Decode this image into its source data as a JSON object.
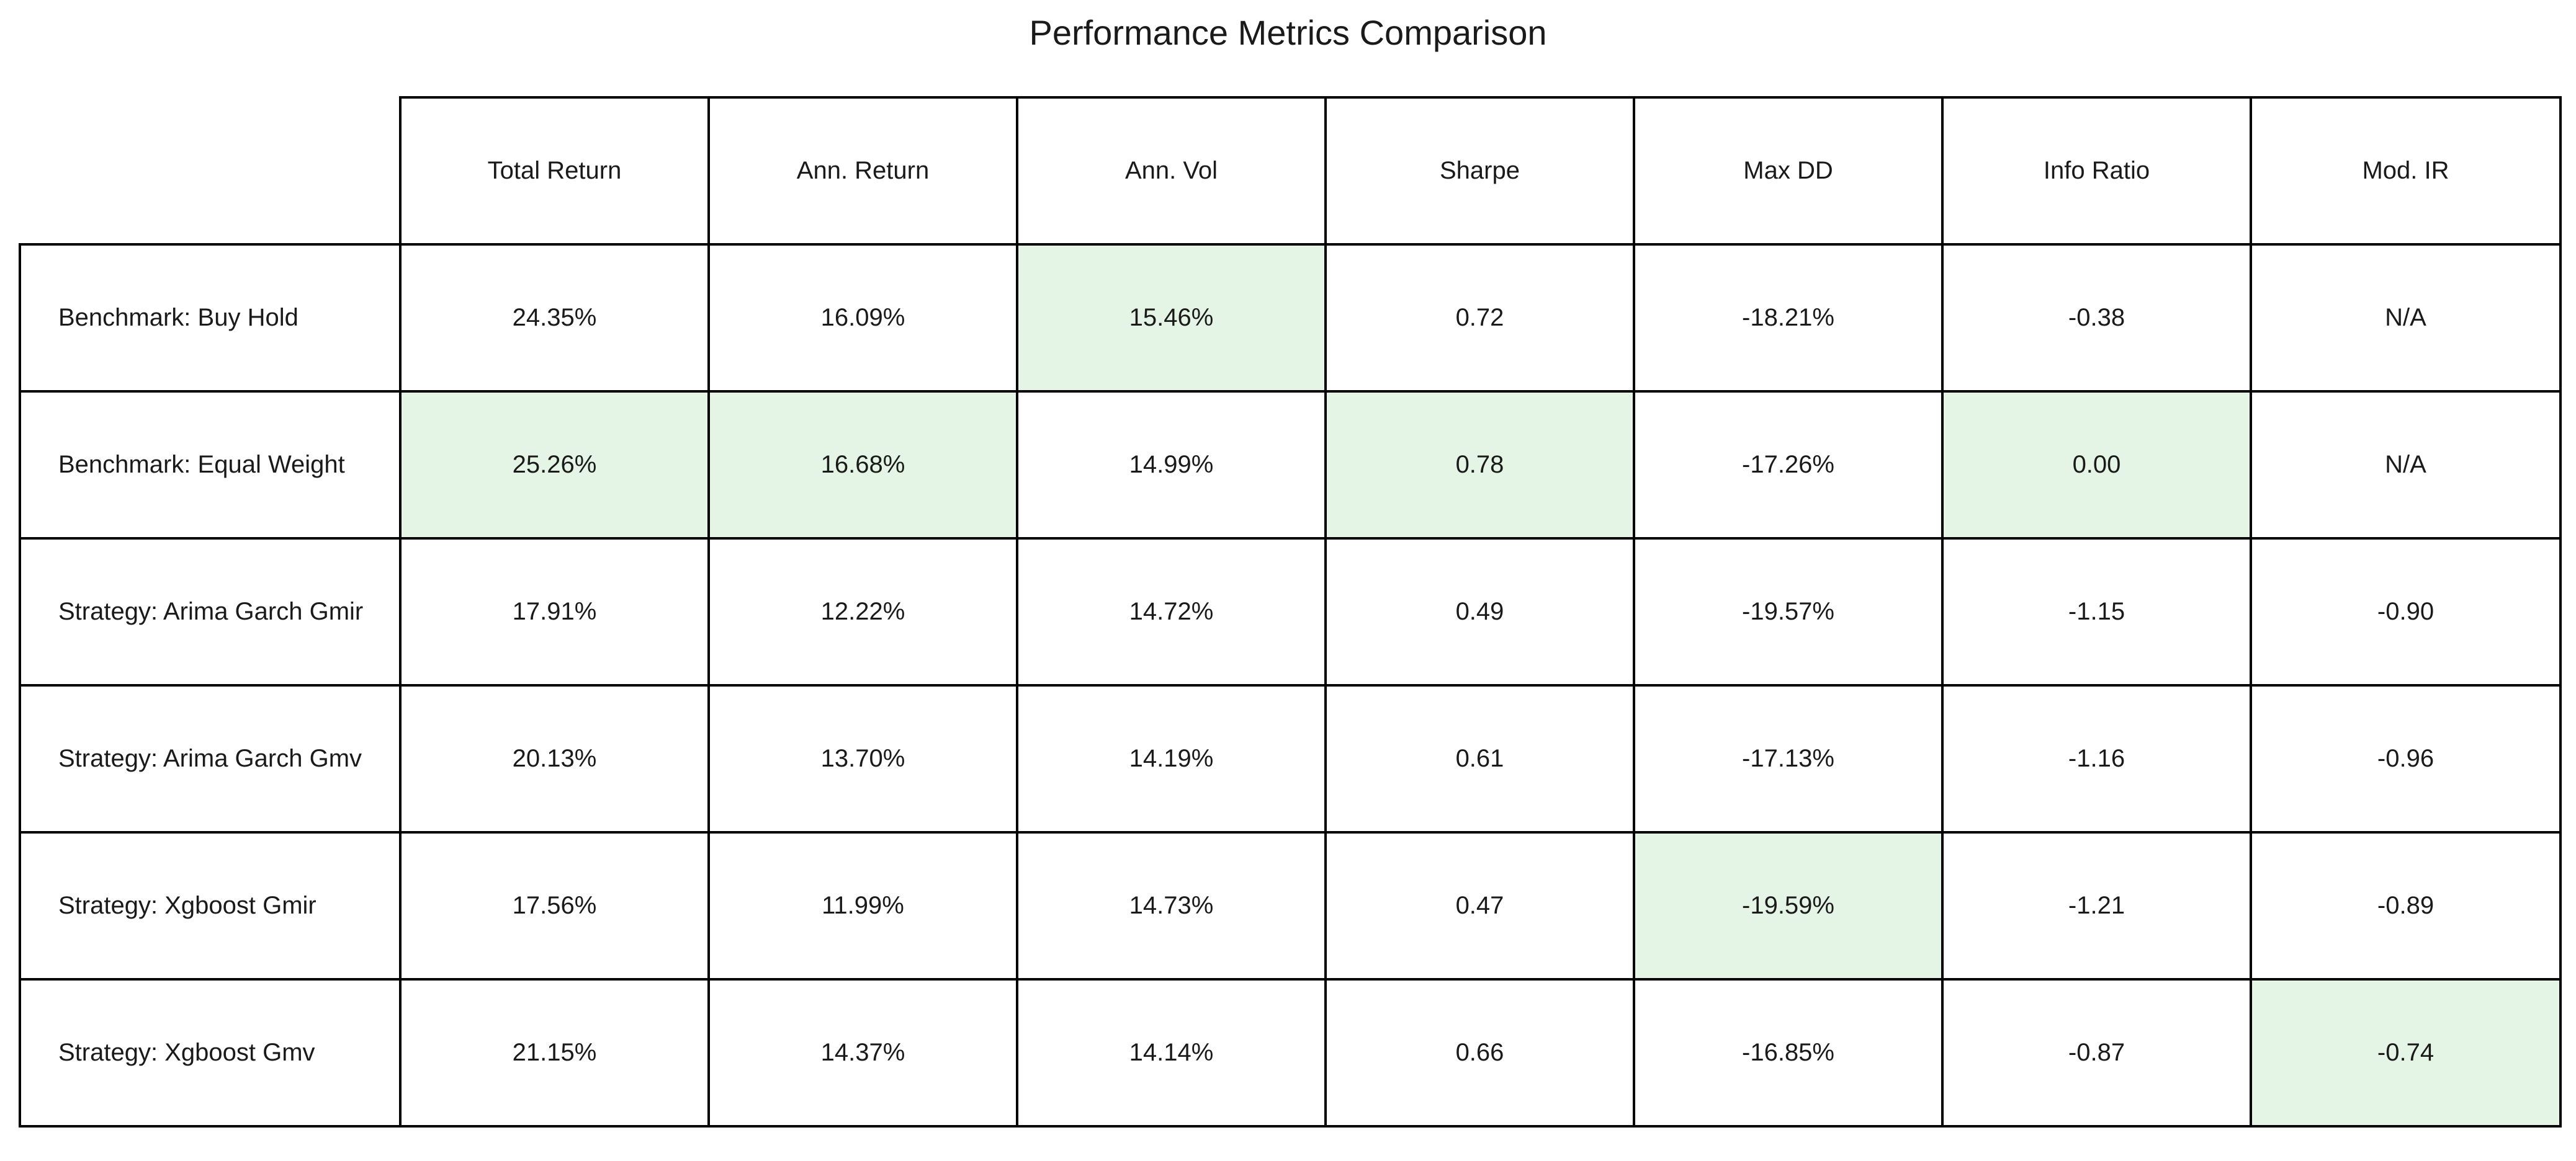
{
  "chart_data": {
    "type": "table",
    "title": "Performance Metrics Comparison",
    "columns": [
      "Total Return",
      "Ann. Return",
      "Ann. Vol",
      "Sharpe",
      "Max DD",
      "Info Ratio",
      "Mod. IR"
    ],
    "rows": [
      {
        "label": "Benchmark: Buy Hold",
        "cells": [
          "24.35%",
          "16.09%",
          "15.46%",
          "0.72",
          "-18.21%",
          "-0.38",
          "N/A"
        ],
        "highlight": [
          false,
          false,
          true,
          false,
          false,
          false,
          false
        ]
      },
      {
        "label": "Benchmark: Equal Weight",
        "cells": [
          "25.26%",
          "16.68%",
          "14.99%",
          "0.78",
          "-17.26%",
          "0.00",
          "N/A"
        ],
        "highlight": [
          true,
          true,
          false,
          true,
          false,
          true,
          false
        ]
      },
      {
        "label": "Strategy: Arima Garch Gmir",
        "cells": [
          "17.91%",
          "12.22%",
          "14.72%",
          "0.49",
          "-19.57%",
          "-1.15",
          "-0.90"
        ],
        "highlight": [
          false,
          false,
          false,
          false,
          false,
          false,
          false
        ]
      },
      {
        "label": "Strategy: Arima Garch Gmv",
        "cells": [
          "20.13%",
          "13.70%",
          "14.19%",
          "0.61",
          "-17.13%",
          "-1.16",
          "-0.96"
        ],
        "highlight": [
          false,
          false,
          false,
          false,
          false,
          false,
          false
        ]
      },
      {
        "label": "Strategy: Xgboost Gmir",
        "cells": [
          "17.56%",
          "11.99%",
          "14.73%",
          "0.47",
          "-19.59%",
          "-1.21",
          "-0.89"
        ],
        "highlight": [
          false,
          false,
          false,
          false,
          true,
          false,
          false
        ]
      },
      {
        "label": "Strategy: Xgboost Gmv",
        "cells": [
          "21.15%",
          "14.37%",
          "14.14%",
          "0.66",
          "-16.85%",
          "-0.87",
          "-0.74"
        ],
        "highlight": [
          false,
          false,
          false,
          false,
          false,
          false,
          true
        ]
      }
    ],
    "colors": {
      "highlight": "#e5f5e5",
      "grid": "#000000",
      "text": "#1a1a1a",
      "background": "#ffffff"
    },
    "grid": true
  }
}
